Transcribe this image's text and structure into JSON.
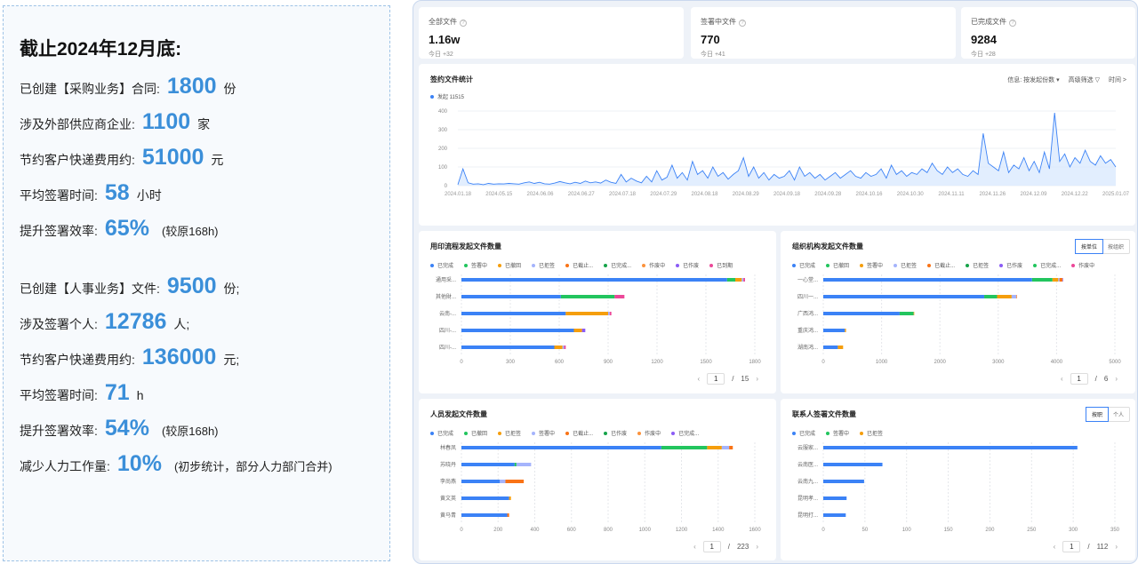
{
  "summary": {
    "heading": "截止2024年12月底:",
    "purchase": [
      {
        "label": "已创建【采购业务】合同:",
        "value": "1800",
        "unit": "份",
        "note": ""
      },
      {
        "label": "涉及外部供应商企业:",
        "value": "1100",
        "unit": "家",
        "note": ""
      },
      {
        "label": "节约客户快递费用约:",
        "value": "51000",
        "unit": "元",
        "note": ""
      },
      {
        "label": "平均签署时间:",
        "value": "58",
        "unit": "小时",
        "note": ""
      },
      {
        "label": "提升签署效率:",
        "value": "65%",
        "unit": "",
        "note": "(较原168h)"
      }
    ],
    "hr": [
      {
        "label": "已创建【人事业务】文件:",
        "value": "9500",
        "unit": "份;",
        "note": ""
      },
      {
        "label": "涉及签署个人:",
        "value": "12786",
        "unit": "人;",
        "note": ""
      },
      {
        "label": "节约客户快递费用约:",
        "value": "136000",
        "unit": "元;",
        "note": ""
      },
      {
        "label": "平均签署时间:",
        "value": "71",
        "unit": "h",
        "note": ""
      },
      {
        "label": "提升签署效率:",
        "value": "54%",
        "unit": "",
        "note": "(较原168h)"
      },
      {
        "label": "减少人力工作量:",
        "value": "10%",
        "unit": "",
        "note": "(初步统计，部分人力部门合并)"
      }
    ]
  },
  "kpis": [
    {
      "title": "全部文件",
      "value": "1.16w",
      "delta": "今日 +32"
    },
    {
      "title": "签署中文件",
      "value": "770",
      "delta": "今日 +41"
    },
    {
      "title": "已完成文件",
      "value": "9284",
      "delta": "今日 +28"
    }
  ],
  "trend": {
    "title": "签约文件统计",
    "tools": [
      "信息: 按发起份数 ▾",
      "高级筛选 ▽",
      "时间 >"
    ],
    "legend": "发起 11515",
    "color": "#3b82f6",
    "chart_data": {
      "type": "area",
      "x_ticks": [
        "2024.01.18",
        "2024.05.15",
        "2024.06.06",
        "2024.06.27",
        "2024.07.18",
        "2024.07.29",
        "2024.08.18",
        "2024.08.29",
        "2024.09.18",
        "2024.09.28",
        "2024.10.16",
        "2024.10.30",
        "2024.11.11",
        "2024.11.26",
        "2024.12.09",
        "2024.12.22",
        "2025.01.07"
      ],
      "y_ticks": [
        0,
        100,
        200,
        300,
        400
      ],
      "ylim": [
        0,
        400
      ],
      "values": [
        5,
        90,
        15,
        8,
        10,
        5,
        12,
        8,
        10,
        9,
        12,
        10,
        8,
        15,
        20,
        12,
        18,
        10,
        8,
        14,
        22,
        15,
        10,
        18,
        12,
        25,
        15,
        20,
        14,
        30,
        18,
        12,
        60,
        20,
        40,
        25,
        15,
        50,
        20,
        80,
        30,
        45,
        110,
        40,
        70,
        30,
        130,
        60,
        80,
        40,
        100,
        50,
        70,
        35,
        60,
        80,
        150,
        50,
        100,
        40,
        70,
        30,
        60,
        40,
        50,
        80,
        30,
        100,
        50,
        70,
        40,
        60,
        30,
        50,
        70,
        40,
        60,
        80,
        50,
        40,
        70,
        50,
        60,
        90,
        40,
        110,
        60,
        80,
        50,
        70,
        60,
        90,
        70,
        120,
        80,
        60,
        100,
        70,
        90,
        60,
        50,
        80,
        60,
        280,
        120,
        100,
        80,
        180,
        70,
        110,
        90,
        150,
        80,
        130,
        70,
        180,
        90,
        390,
        130,
        170,
        100,
        150,
        120,
        190,
        130,
        110,
        160,
        120,
        140,
        100
      ]
    }
  },
  "panels": {
    "seal": {
      "title": "用印流程发起文件数量",
      "legend": [
        [
          "已完成",
          "#3b82f6"
        ],
        [
          "签署中",
          "#22c55e"
        ],
        [
          "已撤回",
          "#f59e0b"
        ],
        [
          "已拒签",
          "#a5b4fc"
        ],
        [
          "已截止...",
          "#f97316"
        ],
        [
          "已完成...",
          "#16a34a"
        ],
        [
          "作废中",
          "#fb923c"
        ],
        [
          "已作废",
          "#8b5cf6"
        ],
        [
          "已到期",
          "#ec4899"
        ]
      ],
      "categories": [
        "通用采...",
        "其他財...",
        "云南-...",
        "四川-...",
        "四川-..."
      ],
      "x_ticks": [
        "0",
        "300",
        "600",
        "900",
        "1200",
        "1500",
        "1800"
      ],
      "xmax": 1800,
      "page": "1",
      "pages": "15",
      "chart_data": {
        "type": "bar",
        "stack": [
          [
            1630,
            50,
            40,
            10,
            0,
            0,
            0,
            0,
            10
          ],
          [
            610,
            330,
            0,
            0,
            0,
            0,
            0,
            0,
            60
          ],
          [
            640,
            0,
            260,
            10,
            0,
            0,
            0,
            0,
            10
          ],
          [
            690,
            0,
            50,
            0,
            0,
            0,
            0,
            20,
            0
          ],
          [
            570,
            0,
            50,
            10,
            0,
            0,
            0,
            0,
            10
          ]
        ]
      }
    },
    "org": {
      "title": "组织机构发起文件数量",
      "seg": [
        "按单位",
        "按组织"
      ],
      "legend": [
        [
          "已完成",
          "#3b82f6"
        ],
        [
          "已撤回",
          "#22c55e"
        ],
        [
          "签署中",
          "#f59e0b"
        ],
        [
          "已拒签",
          "#a5b4fc"
        ],
        [
          "已截止...",
          "#f97316"
        ],
        [
          "已拒签",
          "#16a34a"
        ],
        [
          "已作废",
          "#8b5cf6"
        ],
        [
          "已完成...",
          "#22c55e"
        ],
        [
          "作废中",
          "#ec4899"
        ]
      ],
      "categories": [
        "一心堂...",
        "四川一...",
        "广西鸿...",
        "重庆鸿...",
        "湖南鸿..."
      ],
      "x_ticks": [
        "0",
        "1000",
        "2000",
        "3000",
        "4000",
        "5000"
      ],
      "xmax": 5000,
      "page": "1",
      "pages": "6",
      "chart_data": {
        "type": "bar",
        "stack": [
          [
            3580,
            350,
            100,
            20,
            50,
            0,
            10,
            0,
            0
          ],
          [
            2760,
            220,
            250,
            80,
            10,
            0,
            0,
            0,
            0
          ],
          [
            1310,
            240,
            10,
            0,
            0,
            0,
            0,
            0,
            0
          ],
          [
            370,
            0,
            20,
            0,
            0,
            0,
            0,
            0,
            0
          ],
          [
            250,
            0,
            90,
            0,
            0,
            0,
            0,
            0,
            0
          ]
        ]
      }
    },
    "person": {
      "title": "人员发起文件数量",
      "legend": [
        [
          "已完成",
          "#3b82f6"
        ],
        [
          "已撤回",
          "#22c55e"
        ],
        [
          "已拒签",
          "#f59e0b"
        ],
        [
          "签署中",
          "#a5b4fc"
        ],
        [
          "已截止...",
          "#f97316"
        ],
        [
          "已作废",
          "#16a34a"
        ],
        [
          "作废中",
          "#fb923c"
        ],
        [
          "已完成...",
          "#8b5cf6"
        ]
      ],
      "categories": [
        "林春凤",
        "苏晓丹",
        "李尚燕",
        "黄文英",
        "黄马青"
      ],
      "x_ticks": [
        "0",
        "200",
        "400",
        "600",
        "800",
        "1000",
        "1200",
        "1400",
        "1600"
      ],
      "xmax": 1600,
      "page": "1",
      "pages": "223",
      "chart_data": {
        "type": "bar",
        "stack": [
          [
            1090,
            250,
            80,
            40,
            20,
            0,
            0,
            0
          ],
          [
            290,
            10,
            0,
            80,
            0,
            0,
            0,
            0
          ],
          [
            210,
            0,
            0,
            30,
            100,
            0,
            0,
            0
          ],
          [
            260,
            0,
            10,
            0,
            0,
            0,
            0,
            0
          ],
          [
            250,
            0,
            0,
            0,
            10,
            0,
            0,
            0
          ]
        ]
      }
    },
    "contact": {
      "title": "联系人签署文件数量",
      "seg": [
        "按职",
        "个人"
      ],
      "legend": [
        [
          "已完成",
          "#3b82f6"
        ],
        [
          "签署中",
          "#22c55e"
        ],
        [
          "已拒签",
          "#f59e0b"
        ]
      ],
      "categories": [
        "云服家...",
        "云南医...",
        "云南九...",
        "昆明孝...",
        "昆明打..."
      ],
      "x_ticks": [
        "0",
        "50",
        "100",
        "150",
        "200",
        "250",
        "300",
        "350"
      ],
      "xmax": 350,
      "page": "1",
      "pages": "112",
      "chart_data": {
        "type": "bar",
        "stack": [
          [
            305,
            0,
            0
          ],
          [
            71,
            0,
            0
          ],
          [
            49,
            0,
            0
          ],
          [
            28,
            0,
            0
          ],
          [
            27,
            0,
            0
          ]
        ]
      }
    }
  }
}
